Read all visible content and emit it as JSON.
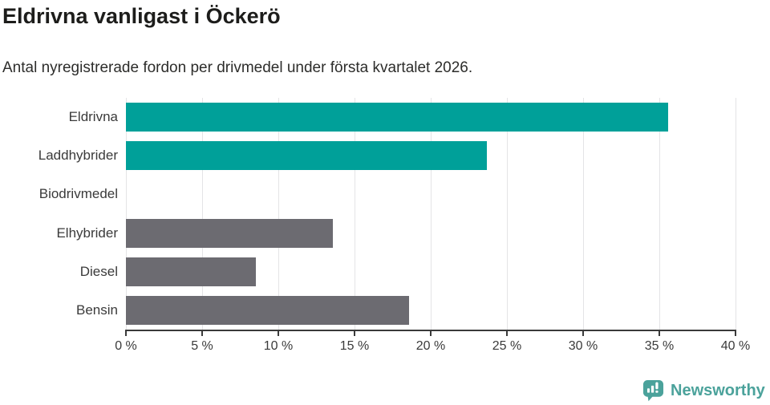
{
  "branding": {
    "wordmark": "Newsworthy"
  },
  "colors": {
    "highlight": "#00a099",
    "muted": "#6c6b71",
    "brand": "#4ba29b",
    "gridline": "#e4e4e6",
    "axis": "#3a3a3a",
    "label_text": "#3a3a3a",
    "title_text": "#1d1d1b"
  },
  "chart_data": {
    "type": "bar",
    "orientation": "horizontal",
    "title": "Eldrivna vanligast i Öckerö",
    "subtitle": "Antal nyregistrerade fordon per drivmedel under första kvartalet 2026.",
    "categories": [
      "Eldrivna",
      "Laddhybrider",
      "Biodrivmedel",
      "Elhybrider",
      "Diesel",
      "Bensin"
    ],
    "values": [
      35.6,
      23.7,
      0,
      13.6,
      8.5,
      18.6
    ],
    "value_unit": "percent",
    "bar_colors": [
      "#00a099",
      "#00a099",
      "#00a099",
      "#6c6b71",
      "#6c6b71",
      "#6c6b71"
    ],
    "xlabel": "",
    "ylabel": "",
    "xlim": [
      0,
      40
    ],
    "xticks": [
      0,
      5,
      10,
      15,
      20,
      25,
      30,
      35,
      40
    ],
    "xtick_labels": [
      "0 %",
      "5 %",
      "10 %",
      "15 %",
      "20 %",
      "25 %",
      "30 %",
      "35 %",
      "40 %"
    ],
    "grid": "vertical",
    "legend": "none"
  }
}
